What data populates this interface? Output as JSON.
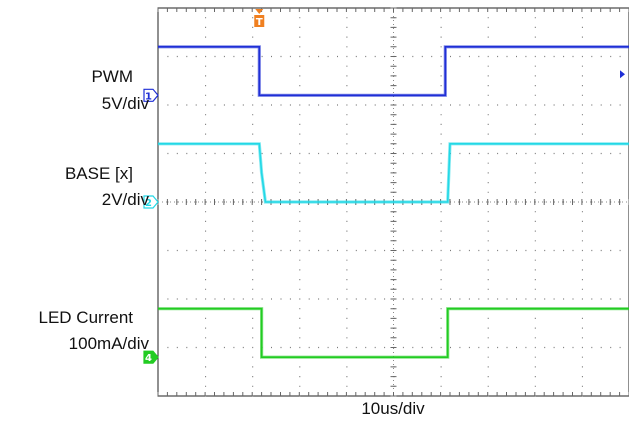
{
  "chart_data": {
    "type": "line",
    "timebase": "10us/div",
    "x_divisions": 10,
    "y_divisions": 8,
    "trigger_marker": "T",
    "series": [
      {
        "name": "PWM",
        "scale": "5V/div",
        "channel": "1",
        "color": "#1f2fd6",
        "high_level_div": 3.2,
        "low_level_div": 2.2,
        "points": [
          [
            0,
            1
          ],
          [
            2.15,
            1
          ],
          [
            2.15,
            0
          ],
          [
            6.1,
            0
          ],
          [
            6.1,
            1
          ],
          [
            10,
            1
          ]
        ]
      },
      {
        "name": "BASE [x]",
        "scale": "2V/div",
        "channel": "2",
        "color": "#22d8e6",
        "high_level_div": 1.2,
        "low_level_div": 0.0,
        "points": [
          [
            0,
            1
          ],
          [
            2.15,
            1
          ],
          [
            2.2,
            0.5
          ],
          [
            2.28,
            0
          ],
          [
            6.15,
            0
          ],
          [
            6.2,
            1
          ],
          [
            10,
            1
          ]
        ]
      },
      {
        "name": "LED Current",
        "scale": "100mA/div",
        "channel": "4",
        "color": "#22cc22",
        "high_level_div": -2.2,
        "low_level_div": -3.2,
        "points": [
          [
            0,
            1
          ],
          [
            2.2,
            1
          ],
          [
            2.2,
            0
          ],
          [
            6.15,
            0
          ],
          [
            6.15,
            1
          ],
          [
            10,
            1
          ]
        ]
      }
    ]
  }
}
